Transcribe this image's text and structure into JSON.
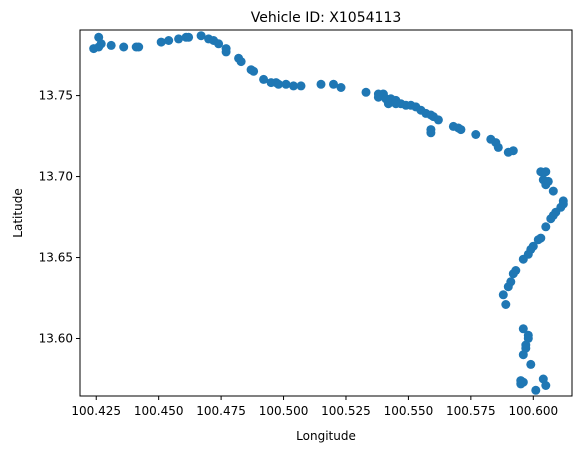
{
  "chart_data": {
    "type": "scatter",
    "title": "Vehicle ID: X1054113",
    "xlabel": "Longitude",
    "ylabel": "Latitude",
    "xlim": [
      100.4185,
      100.6155
    ],
    "ylim": [
      13.5645,
      13.7905
    ],
    "xticks": [
      100.425,
      100.45,
      100.475,
      100.5,
      100.525,
      100.55,
      100.575,
      100.6
    ],
    "xtick_labels": [
      "100.425",
      "100.450",
      "100.475",
      "100.500",
      "100.525",
      "100.550",
      "100.575",
      "100.600"
    ],
    "yticks": [
      13.6,
      13.65,
      13.7,
      13.75
    ],
    "ytick_labels": [
      "13.60",
      "13.65",
      "13.70",
      "13.75"
    ],
    "grid": false,
    "marker_color": "#1f77b4",
    "points": [
      [
        100.424,
        13.779
      ],
      [
        100.426,
        13.78
      ],
      [
        100.427,
        13.782
      ],
      [
        100.426,
        13.786
      ],
      [
        100.431,
        13.781
      ],
      [
        100.436,
        13.78
      ],
      [
        100.441,
        13.78
      ],
      [
        100.442,
        13.78
      ],
      [
        100.451,
        13.783
      ],
      [
        100.454,
        13.784
      ],
      [
        100.458,
        13.785
      ],
      [
        100.461,
        13.786
      ],
      [
        100.462,
        13.786
      ],
      [
        100.467,
        13.787
      ],
      [
        100.47,
        13.785
      ],
      [
        100.472,
        13.784
      ],
      [
        100.474,
        13.782
      ],
      [
        100.477,
        13.779
      ],
      [
        100.477,
        13.777
      ],
      [
        100.482,
        13.773
      ],
      [
        100.483,
        13.771
      ],
      [
        100.487,
        13.766
      ],
      [
        100.488,
        13.765
      ],
      [
        100.492,
        13.76
      ],
      [
        100.495,
        13.758
      ],
      [
        100.497,
        13.758
      ],
      [
        100.498,
        13.757
      ],
      [
        100.501,
        13.757
      ],
      [
        100.504,
        13.756
      ],
      [
        100.507,
        13.756
      ],
      [
        100.515,
        13.757
      ],
      [
        100.52,
        13.757
      ],
      [
        100.523,
        13.755
      ],
      [
        100.533,
        13.752
      ],
      [
        100.538,
        13.751
      ],
      [
        100.538,
        13.749
      ],
      [
        100.54,
        13.751
      ],
      [
        100.541,
        13.748
      ],
      [
        100.542,
        13.745
      ],
      [
        100.543,
        13.748
      ],
      [
        100.545,
        13.747
      ],
      [
        100.545,
        13.745
      ],
      [
        100.547,
        13.745
      ],
      [
        100.549,
        13.744
      ],
      [
        100.551,
        13.744
      ],
      [
        100.553,
        13.743
      ],
      [
        100.555,
        13.741
      ],
      [
        100.557,
        13.739
      ],
      [
        100.559,
        13.738
      ],
      [
        100.559,
        13.729
      ],
      [
        100.559,
        13.727
      ],
      [
        100.56,
        13.737
      ],
      [
        100.562,
        13.735
      ],
      [
        100.568,
        13.731
      ],
      [
        100.57,
        13.73
      ],
      [
        100.571,
        13.729
      ],
      [
        100.577,
        13.726
      ],
      [
        100.583,
        13.723
      ],
      [
        100.585,
        13.721
      ],
      [
        100.586,
        13.718
      ],
      [
        100.59,
        13.715
      ],
      [
        100.592,
        13.716
      ],
      [
        100.603,
        13.703
      ],
      [
        100.605,
        13.703
      ],
      [
        100.604,
        13.698
      ],
      [
        100.605,
        13.695
      ],
      [
        100.606,
        13.697
      ],
      [
        100.608,
        13.691
      ],
      [
        100.612,
        13.685
      ],
      [
        100.612,
        13.683
      ],
      [
        100.611,
        13.681
      ],
      [
        100.609,
        13.678
      ],
      [
        100.608,
        13.676
      ],
      [
        100.607,
        13.674
      ],
      [
        100.605,
        13.669
      ],
      [
        100.603,
        13.662
      ],
      [
        100.602,
        13.661
      ],
      [
        100.6,
        13.657
      ],
      [
        100.599,
        13.655
      ],
      [
        100.598,
        13.652
      ],
      [
        100.596,
        13.649
      ],
      [
        100.593,
        13.642
      ],
      [
        100.592,
        13.64
      ],
      [
        100.591,
        13.635
      ],
      [
        100.59,
        13.632
      ],
      [
        100.588,
        13.627
      ],
      [
        100.589,
        13.621
      ],
      [
        100.596,
        13.606
      ],
      [
        100.598,
        13.602
      ],
      [
        100.598,
        13.6
      ],
      [
        100.597,
        13.596
      ],
      [
        100.597,
        13.594
      ],
      [
        100.596,
        13.59
      ],
      [
        100.599,
        13.584
      ],
      [
        100.595,
        13.574
      ],
      [
        100.596,
        13.573
      ],
      [
        100.595,
        13.572
      ],
      [
        100.601,
        13.568
      ],
      [
        100.604,
        13.575
      ],
      [
        100.605,
        13.571
      ]
    ]
  }
}
